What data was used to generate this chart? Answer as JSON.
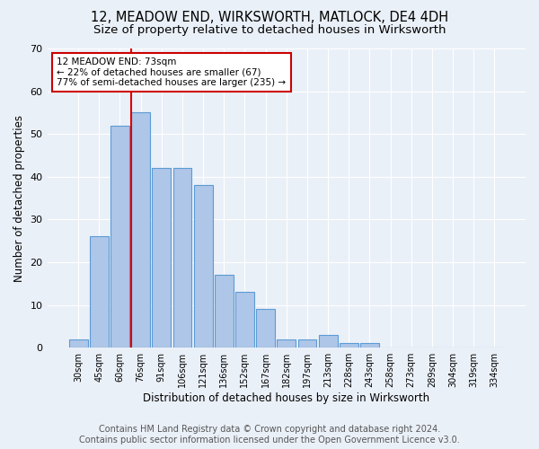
{
  "title": "12, MEADOW END, WIRKSWORTH, MATLOCK, DE4 4DH",
  "subtitle": "Size of property relative to detached houses in Wirksworth",
  "xlabel": "Distribution of detached houses by size in Wirksworth",
  "ylabel": "Number of detached properties",
  "bar_labels": [
    "30sqm",
    "45sqm",
    "60sqm",
    "76sqm",
    "91sqm",
    "106sqm",
    "121sqm",
    "136sqm",
    "152sqm",
    "167sqm",
    "182sqm",
    "197sqm",
    "213sqm",
    "228sqm",
    "243sqm",
    "258sqm",
    "273sqm",
    "289sqm",
    "304sqm",
    "319sqm",
    "334sqm"
  ],
  "bar_values": [
    2,
    26,
    52,
    55,
    42,
    42,
    38,
    17,
    13,
    9,
    2,
    2,
    3,
    1,
    1,
    0,
    0,
    0,
    0,
    0,
    0
  ],
  "bar_color": "#aec6e8",
  "bar_edge_color": "#5b9bd5",
  "vline_color": "#dd0000",
  "annotation_text": "12 MEADOW END: 73sqm\n← 22% of detached houses are smaller (67)\n77% of semi-detached houses are larger (235) →",
  "annotation_box_color": "#ffffff",
  "annotation_box_edge": "#cc0000",
  "ylim": [
    0,
    70
  ],
  "yticks": [
    0,
    10,
    20,
    30,
    40,
    50,
    60,
    70
  ],
  "footer": "Contains HM Land Registry data © Crown copyright and database right 2024.\nContains public sector information licensed under the Open Government Licence v3.0.",
  "bg_color": "#eaf0f8",
  "plot_bg_color": "#eaf0f8",
  "title_fontsize": 10.5,
  "subtitle_fontsize": 9.5,
  "xlabel_fontsize": 8.5,
  "ylabel_fontsize": 8.5,
  "footer_fontsize": 7
}
